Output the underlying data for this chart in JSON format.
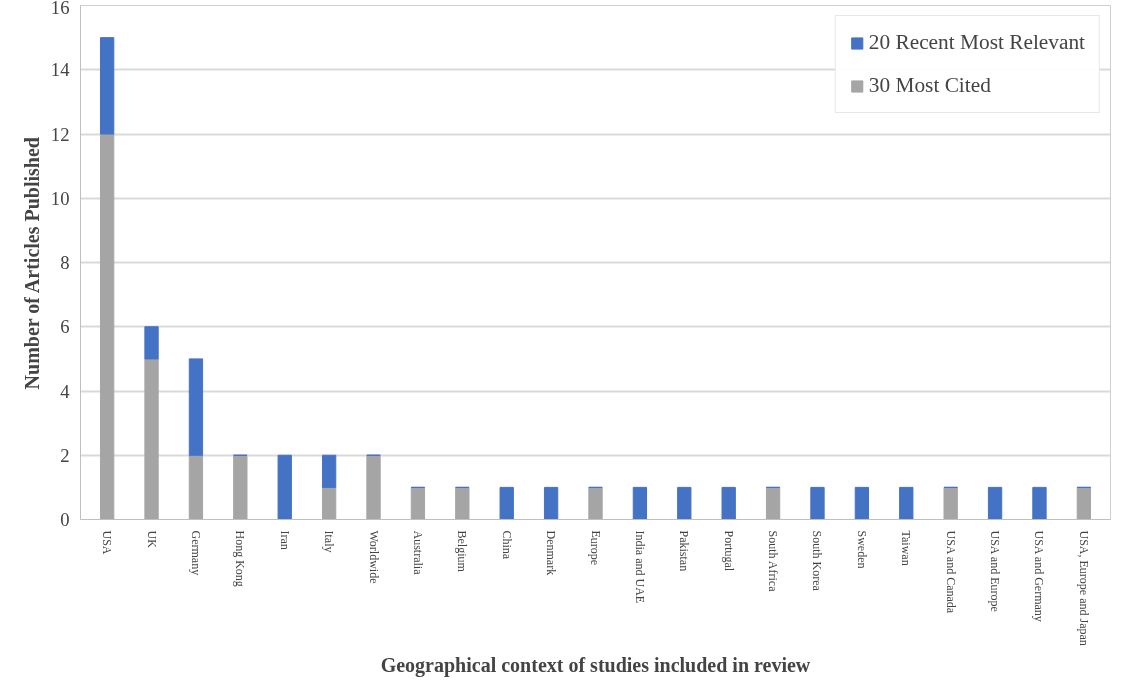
{
  "chart_data": {
    "type": "bar",
    "stacked": true,
    "xlabel": "Geographical context of studies included in review",
    "ylabel": "Number of Articles Published",
    "categories": [
      "USA",
      "UK",
      "Germany",
      "Hong Kong",
      "Iran",
      "Italy",
      "Worldwide",
      "Australia",
      "Belgium",
      "China",
      "Denmark",
      "Europe",
      "India and UAE",
      "Pakistan",
      "Portugal",
      "South Africa",
      "South Korea",
      "Sweden",
      "Taiwan",
      "USA and Canada",
      "USA and Europe",
      "USA and Germany",
      "USA, Europe and Japan"
    ],
    "series": [
      {
        "name": "30 Most Cited",
        "color": "#a5a5a5",
        "values": [
          12,
          5,
          2,
          2,
          0,
          1,
          2,
          1,
          1,
          0,
          0,
          1,
          0,
          0,
          0,
          1,
          0,
          0,
          0,
          1,
          0,
          0,
          1
        ]
      },
      {
        "name": "20 Recent Most Relevant",
        "color": "#4472c4",
        "values": [
          3,
          1,
          3,
          0,
          2,
          1,
          0,
          0,
          0,
          1,
          1,
          0,
          1,
          1,
          1,
          0,
          1,
          1,
          1,
          0,
          1,
          1,
          0
        ]
      }
    ],
    "ylim": [
      0,
      16
    ],
    "yticks": [
      0,
      2,
      4,
      6,
      8,
      10,
      12,
      14,
      16
    ],
    "grid": "y",
    "legend": "top right"
  }
}
